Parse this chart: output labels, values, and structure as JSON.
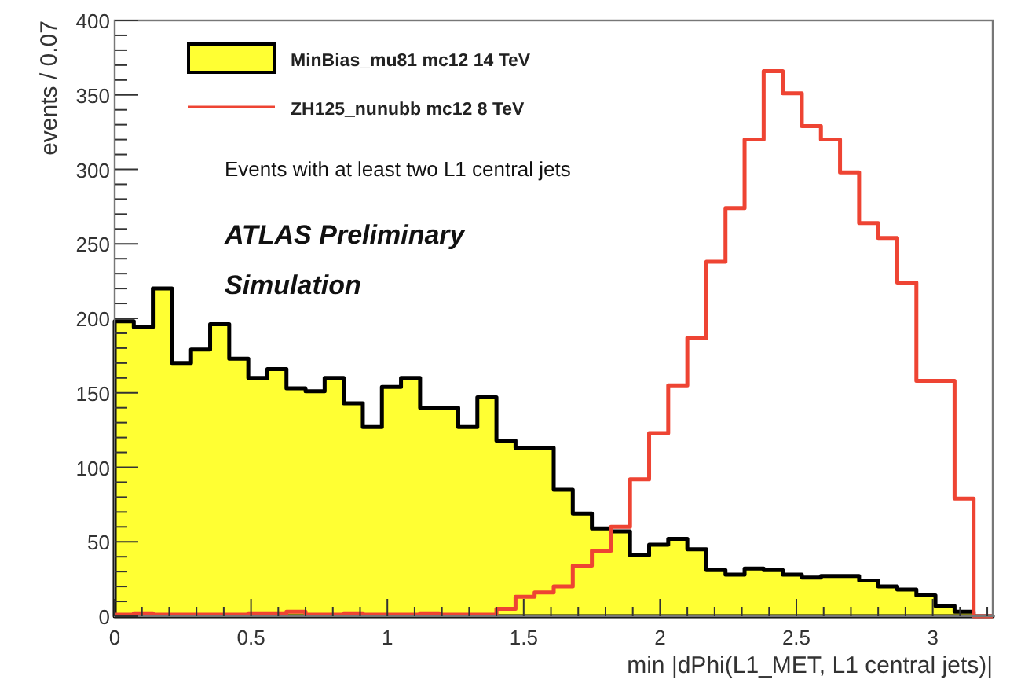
{
  "chart_data": {
    "type": "histogram",
    "xlabel": "min |dPhi(L1_MET, L1 central jets)|",
    "ylabel": "events / 0.07",
    "bins": [
      0,
      0.07,
      0.14,
      0.21,
      0.28,
      0.35,
      0.42,
      0.49,
      0.56,
      0.63,
      0.7,
      0.77,
      0.84,
      0.91,
      0.98,
      1.05,
      1.12,
      1.19,
      1.26,
      1.33,
      1.4,
      1.47,
      1.54,
      1.61,
      1.68,
      1.75,
      1.82,
      1.89,
      1.96,
      2.03,
      2.1,
      2.17,
      2.24,
      2.31,
      2.38,
      2.45,
      2.52,
      2.59,
      2.66,
      2.73,
      2.8,
      2.87,
      2.94,
      3.01,
      3.08,
      3.15,
      3.22
    ],
    "series": [
      {
        "name": "MinBias_mu81 mc12 14 TeV",
        "color": "#ffff33",
        "values": [
          198,
          194,
          220,
          170,
          179,
          196,
          173,
          160,
          166,
          153,
          151,
          160,
          143,
          127,
          154,
          160,
          140,
          140,
          127,
          147,
          118,
          113,
          113,
          85,
          69,
          59,
          57,
          41,
          48,
          52,
          45,
          31,
          28,
          32,
          31,
          28,
          26,
          27,
          27,
          24,
          20,
          18,
          14,
          7,
          3,
          0
        ]
      },
      {
        "name": "ZH125_nunubb mc12 8 TeV",
        "type": "step",
        "color": "#ee4433",
        "x": [
          0,
          0.07,
          0.14,
          0.21,
          0.28,
          0.35,
          0.42,
          0.49,
          0.56,
          0.63,
          0.7,
          0.77,
          0.84,
          0.91,
          0.98,
          1.05,
          1.12,
          1.19,
          1.26,
          1.33,
          1.4,
          1.47,
          1.54,
          1.61,
          1.68,
          1.75,
          1.82,
          1.89,
          1.96,
          2.03,
          2.1,
          2.17,
          2.24,
          2.31,
          2.38,
          2.45,
          2.52,
          2.59,
          2.66,
          2.73,
          2.8,
          2.87,
          2.94,
          3.01,
          3.08,
          3.15,
          3.22
        ],
        "values": [
          1,
          2,
          1,
          1,
          1,
          1,
          1,
          2,
          2,
          3,
          1,
          1,
          2,
          1,
          1,
          1,
          2,
          1,
          1,
          1,
          5,
          13,
          16,
          20,
          34,
          44,
          60,
          92,
          123,
          155,
          187,
          238,
          274,
          320,
          366,
          351,
          329,
          320,
          298,
          264,
          254,
          224,
          158,
          158,
          79,
          0,
          0
        ]
      }
    ],
    "xlim": [
      0,
      3.22
    ],
    "xticks": [
      0,
      {
        "value": 0.1,
        "label": null
      },
      {
        "value": 0.2,
        "label": null
      },
      {
        "value": 0.3,
        "label": null
      },
      {
        "value": 0.4,
        "label": null
      },
      0.5,
      {
        "value": 0.6,
        "label": null
      },
      {
        "value": 0.7,
        "label": null
      },
      {
        "value": 0.8,
        "label": null
      },
      {
        "value": 0.9,
        "label": null
      },
      1,
      {
        "value": 1.1,
        "label": null
      },
      {
        "value": 1.2,
        "label": null
      },
      {
        "value": 1.3,
        "label": null
      },
      {
        "value": 1.4,
        "label": null
      },
      1.5,
      {
        "value": 1.6,
        "label": null
      },
      {
        "value": 1.7,
        "label": null
      },
      {
        "value": 1.8,
        "label": null
      },
      {
        "value": 1.9,
        "label": null
      },
      2,
      {
        "value": 2.1,
        "label": null
      },
      {
        "value": 2.2,
        "label": null
      },
      {
        "value": 2.3,
        "label": null
      },
      {
        "value": 2.4,
        "label": null
      },
      2.5,
      {
        "value": 2.6,
        "label": null
      },
      {
        "value": 2.7,
        "label": null
      },
      {
        "value": 2.8,
        "label": null
      },
      {
        "value": 2.9,
        "label": null
      },
      3,
      {
        "value": 3.1,
        "label": null
      },
      {
        "value": 3.2,
        "label": null
      }
    ],
    "ylim": [
      0,
      400
    ],
    "yticks": [
      0,
      {
        "value": 10,
        "label": null
      },
      {
        "value": 20,
        "label": null
      },
      {
        "value": 30,
        "label": null
      },
      {
        "value": 40,
        "label": null
      },
      50,
      {
        "value": 60,
        "label": null
      },
      {
        "value": 70,
        "label": null
      },
      {
        "value": 80,
        "label": null
      },
      {
        "value": 90,
        "label": null
      },
      100,
      {
        "value": 110,
        "label": null
      },
      {
        "value": 120,
        "label": null
      },
      {
        "value": 130,
        "label": null
      },
      {
        "value": 140,
        "label": null
      },
      150,
      {
        "value": 160,
        "label": null
      },
      {
        "value": 170,
        "label": null
      },
      {
        "value": 180,
        "label": null
      },
      {
        "value": 190,
        "label": null
      },
      200,
      {
        "value": 210,
        "label": null
      },
      {
        "value": 220,
        "label": null
      },
      {
        "value": 230,
        "label": null
      },
      {
        "value": 240,
        "label": null
      },
      250,
      {
        "value": 260,
        "label": null
      },
      {
        "value": 270,
        "label": null
      },
      {
        "value": 280,
        "label": null
      },
      {
        "value": 290,
        "label": null
      },
      300,
      {
        "value": 310,
        "label": null
      },
      {
        "value": 320,
        "label": null
      },
      {
        "value": 330,
        "label": null
      },
      {
        "value": 340,
        "label": null
      },
      350,
      {
        "value": 360,
        "label": null
      },
      {
        "value": 370,
        "label": null
      },
      {
        "value": 380,
        "label": null
      },
      {
        "value": 390,
        "label": null
      },
      400
    ],
    "legend": "top left",
    "annotations": [
      "Events with at least two L1 central jets",
      "ATLAS Preliminary",
      "Simulation"
    ]
  }
}
